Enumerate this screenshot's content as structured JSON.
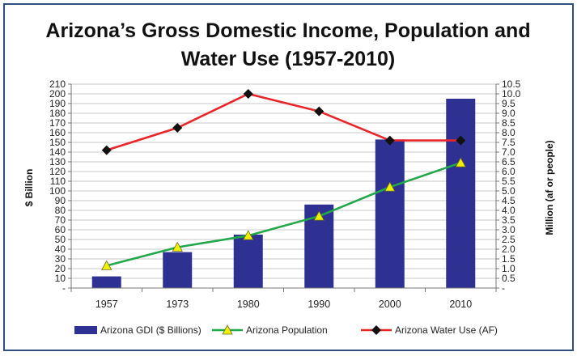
{
  "chart_data": {
    "type": "bar",
    "title_lines": [
      "Arizona’s Gross Domestic Income, Population and",
      "Water Use (1957-2010)"
    ],
    "categories": [
      "1957",
      "1973",
      "1980",
      "1990",
      "2000",
      "2010"
    ],
    "ylabel": "$ Billion",
    "y2label": "Million (af or people)",
    "ylim": [
      0,
      210
    ],
    "y2lim": [
      0,
      10.5
    ],
    "y_ticks": [
      "-",
      "10",
      "20",
      "30",
      "40",
      "50",
      "60",
      "70",
      "80",
      "90",
      "100",
      "110",
      "120",
      "130",
      "140",
      "150",
      "160",
      "170",
      "180",
      "190",
      "200",
      "210"
    ],
    "y2_ticks": [
      "-",
      "0.5",
      "1.0",
      "1.5",
      "2.0",
      "2.5",
      "3.0",
      "3.5",
      "4.0",
      "4.5",
      "5.0",
      "5.5",
      "6.0",
      "6.5",
      "7.0",
      "7.5",
      "8.0",
      "8.5",
      "9.0",
      "9.5",
      "10.0",
      "10.5"
    ],
    "grid": "horizontal",
    "legend_position": "bottom",
    "series": [
      {
        "name": "Arizona GDI ($ Billions)",
        "kind": "bar",
        "axis": "left",
        "color": "#2e3192",
        "values": [
          12,
          37,
          55,
          86,
          153,
          195
        ]
      },
      {
        "name": "Arizona Population",
        "kind": "line",
        "axis": "right",
        "color": "#22a84a",
        "marker": "triangle",
        "marker_color": "#f0f000",
        "values": [
          1.15,
          2.1,
          2.7,
          3.7,
          5.2,
          6.45
        ]
      },
      {
        "name": "Arizona Water Use (AF)",
        "kind": "line",
        "axis": "right",
        "color": "#e8262a",
        "marker": "diamond",
        "marker_color": "#111111",
        "values": [
          7.1,
          8.25,
          10.0,
          9.1,
          7.6,
          7.6
        ]
      }
    ]
  }
}
